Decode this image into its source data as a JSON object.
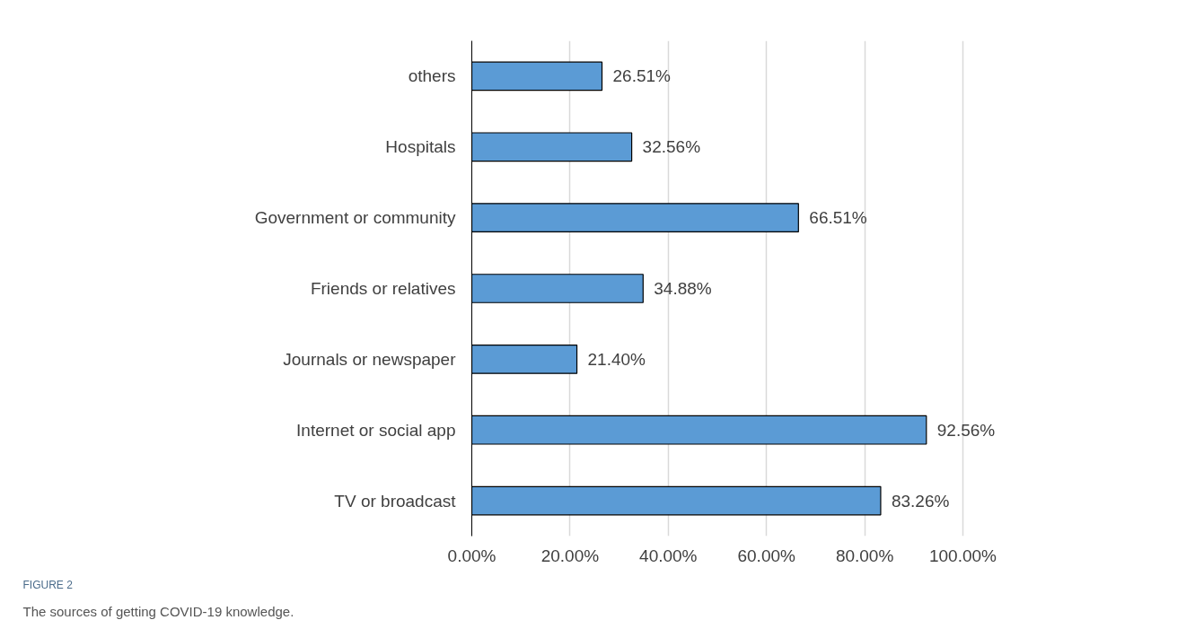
{
  "chart_data": {
    "type": "bar",
    "orientation": "horizontal",
    "categories": [
      "others",
      "Hospitals",
      "Government or community",
      "Friends or relatives",
      "Journals or newspaper",
      "Internet or social app",
      "TV or broadcast"
    ],
    "values": [
      26.51,
      32.56,
      66.51,
      34.88,
      21.4,
      92.56,
      83.26
    ],
    "value_labels": [
      "26.51%",
      "32.56%",
      "66.51%",
      "34.88%",
      "21.40%",
      "92.56%",
      "83.26%"
    ],
    "color": "#5b9bd5",
    "xlim": [
      0,
      100
    ],
    "xticks": [
      {
        "value": 0,
        "label": "0.00%"
      },
      {
        "value": 20,
        "label": "20.00%"
      },
      {
        "value": 40,
        "label": "40.00%"
      },
      {
        "value": 60,
        "label": "60.00%"
      },
      {
        "value": 80,
        "label": "80.00%"
      },
      {
        "value": 100,
        "label": "100.00%"
      }
    ],
    "grid": "x",
    "annotations": [
      "FIGURE 2",
      "The sources of getting COVID-19 knowledge."
    ]
  }
}
